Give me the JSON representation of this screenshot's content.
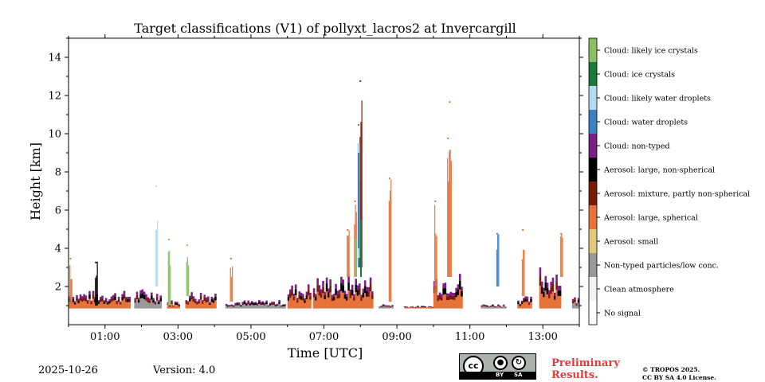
{
  "chart_data": {
    "type": "heatmap",
    "title": "Target classifications (V1) of pollyxt_lacros2 at Invercargill",
    "xlabel": "Time [UTC]",
    "ylabel": "Height [km]",
    "xlim_hours": [
      0,
      14
    ],
    "ylim_km": [
      0,
      15
    ],
    "x_ticks": [
      {
        "hour": 1,
        "label": "01:00"
      },
      {
        "hour": 3,
        "label": "03:00"
      },
      {
        "hour": 5,
        "label": "05:00"
      },
      {
        "hour": 7,
        "label": "07:00"
      },
      {
        "hour": 9,
        "label": "09:00"
      },
      {
        "hour": 11,
        "label": "11:00"
      },
      {
        "hour": 13,
        "label": "13:00"
      }
    ],
    "y_ticks": [
      {
        "km": 2,
        "label": "2"
      },
      {
        "km": 4,
        "label": "4"
      },
      {
        "km": 6,
        "label": "6"
      },
      {
        "km": 8,
        "label": "8"
      },
      {
        "km": 10,
        "label": "10"
      },
      {
        "km": 12,
        "label": "12"
      },
      {
        "km": 14,
        "label": "14"
      }
    ],
    "classes": [
      {
        "label": "No signal",
        "color": "#ffffff"
      },
      {
        "label": "Clean atmosphere",
        "color": "#f2f2f2"
      },
      {
        "label": "Non-typed particles/low conc.",
        "color": "#999999"
      },
      {
        "label": "Aerosol: small",
        "color": "#e0c97a"
      },
      {
        "label": "Aerosol: large, spherical",
        "color": "#e6733a"
      },
      {
        "label": "Aerosol: mixture, partly non-spherical",
        "color": "#7a1c05"
      },
      {
        "label": "Aerosol: large, non-spherical",
        "color": "#000000"
      },
      {
        "label": "Cloud: non-typed",
        "color": "#7b1f86"
      },
      {
        "label": "Cloud: water droplets",
        "color": "#3b82c4"
      },
      {
        "label": "Cloud: likely water droplets",
        "color": "#b5dbf2"
      },
      {
        "label": "Cloud: ice crystals",
        "color": "#1b7a3a"
      },
      {
        "label": "Cloud: likely ice crystals",
        "color": "#8bbf62"
      }
    ],
    "boundary_layer_segments": [
      {
        "start": 0.0,
        "end": 1.7,
        "top_km": 1.8
      },
      {
        "start": 1.8,
        "end": 2.5,
        "top_km": 1.9
      },
      {
        "start": 2.7,
        "end": 3.0,
        "top_km": 1.3
      },
      {
        "start": 3.2,
        "end": 4.0,
        "top_km": 1.8
      },
      {
        "start": 4.3,
        "end": 5.9,
        "top_km": 1.3
      },
      {
        "start": 6.0,
        "end": 6.6,
        "top_km": 2.2
      },
      {
        "start": 6.7,
        "end": 8.3,
        "top_km": 2.6
      },
      {
        "start": 8.5,
        "end": 8.9,
        "top_km": 1.1
      },
      {
        "start": 9.2,
        "end": 10.0,
        "top_km": 1.0
      },
      {
        "start": 10.0,
        "end": 10.8,
        "top_km": 2.8
      },
      {
        "start": 11.3,
        "end": 12.0,
        "top_km": 1.1
      },
      {
        "start": 12.3,
        "end": 12.7,
        "top_km": 1.5
      },
      {
        "start": 12.9,
        "end": 13.5,
        "top_km": 3.2
      },
      {
        "start": 13.8,
        "end": 14.0,
        "top_km": 1.5
      }
    ],
    "plumes": [
      {
        "hour": 0.05,
        "base_km": 1.0,
        "top_km": 3.5,
        "class_index": 4
      },
      {
        "hour": 0.75,
        "base_km": 1.0,
        "top_km": 3.3,
        "class_index": 6
      },
      {
        "hour": 2.4,
        "base_km": 2.0,
        "top_km": 7.3,
        "class_index": 9
      },
      {
        "hour": 2.75,
        "base_km": 1.0,
        "top_km": 4.5,
        "class_index": 11
      },
      {
        "hour": 3.25,
        "base_km": 1.5,
        "top_km": 4.2,
        "class_index": 11
      },
      {
        "hour": 4.45,
        "base_km": 1.2,
        "top_km": 3.5,
        "class_index": 4
      },
      {
        "hour": 7.65,
        "base_km": 2.5,
        "top_km": 5.0,
        "class_index": 4
      },
      {
        "hour": 7.85,
        "base_km": 2.5,
        "top_km": 6.5,
        "class_index": 4
      },
      {
        "hour": 7.95,
        "base_km": 3.0,
        "top_km": 10.5,
        "class_index": 8
      },
      {
        "hour": 8.0,
        "base_km": 3.0,
        "top_km": 12.8,
        "class_index": 5
      },
      {
        "hour": 8.8,
        "base_km": 1.2,
        "top_km": 7.7,
        "class_index": 4
      },
      {
        "hour": 10.05,
        "base_km": 1.5,
        "top_km": 6.5,
        "class_index": 4
      },
      {
        "hour": 10.4,
        "base_km": 2.5,
        "top_km": 9.8,
        "class_index": 4
      },
      {
        "hour": 10.45,
        "base_km": 2.5,
        "top_km": 11.7,
        "class_index": 4
      },
      {
        "hour": 11.75,
        "base_km": 2.0,
        "top_km": 4.8,
        "class_index": 8
      },
      {
        "hour": 12.45,
        "base_km": 1.5,
        "top_km": 5.0,
        "class_index": 4
      },
      {
        "hour": 13.5,
        "base_km": 2.5,
        "top_km": 4.8,
        "class_index": 4
      }
    ]
  },
  "footer": {
    "date": "2025-10-26",
    "version": "Version: 4.0",
    "preliminary_line1": "Preliminary",
    "preliminary_line2": "Results.",
    "copyright_line1": "© TROPOS 2025.",
    "copyright_line2": "CC BY SA 4.0 License.",
    "cc_badge": {
      "cc": "cc",
      "by": "BY",
      "sa": "SA"
    }
  }
}
